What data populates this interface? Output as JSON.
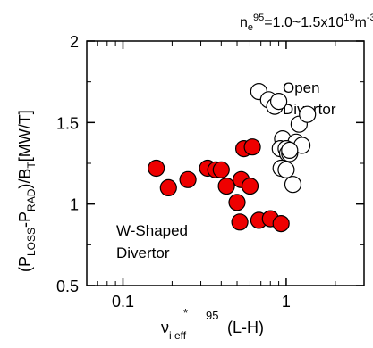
{
  "chart_data": {
    "type": "scatter",
    "title": {
      "pre": "n",
      "sub": "e",
      "sup": "95",
      "mid": "=1.0~1.5x10",
      "exp": "19",
      "unit": "m",
      "unit_exp": "-3"
    },
    "xlabel": {
      "nu": "ν",
      "sub": "i eff",
      "star": "*",
      "sup": "95",
      "tail": "(L-H)"
    },
    "ylabel": {
      "open": "(P",
      "sub1": "LOSS",
      "dash": "-",
      "p2": "P",
      "sub2": "RAD",
      "mid": ")/B",
      "sub3": "T",
      "unit": "[MW/T]"
    },
    "x_scale": "log",
    "xlim": [
      0.06,
      3.0
    ],
    "ylim": [
      0.5,
      2.0
    ],
    "x_ticks": [
      {
        "value": 0.1,
        "label": "0.1"
      },
      {
        "value": 1,
        "label": "1"
      }
    ],
    "y_ticks": [
      {
        "value": 0.5,
        "label": "0.5"
      },
      {
        "value": 1,
        "label": "1"
      },
      {
        "value": 1.5,
        "label": "1.5"
      },
      {
        "value": 2,
        "label": "2"
      }
    ],
    "grid": false,
    "series": [
      {
        "name": [
          "Open",
          "Divertor"
        ],
        "color": "#ffffff",
        "edge": "#000000",
        "marker": "circle-open",
        "x": [
          0.68,
          0.78,
          0.85,
          0.9,
          1.2,
          1.35,
          0.95,
          0.92,
          1.15,
          1.25,
          1.0,
          1.02,
          1.05,
          0.93,
          1.0,
          1.1,
          1.05
        ],
        "y": [
          1.69,
          1.64,
          1.6,
          1.63,
          1.49,
          1.55,
          1.4,
          1.34,
          1.38,
          1.36,
          1.34,
          1.31,
          1.31,
          1.22,
          1.21,
          1.12,
          1.33
        ]
      },
      {
        "name": [
          "W-Shaped",
          "Divertor"
        ],
        "color": "#ee0000",
        "edge": "#000000",
        "marker": "circle-filled",
        "x": [
          0.16,
          0.19,
          0.25,
          0.33,
          0.37,
          0.4,
          0.43,
          0.55,
          0.62,
          0.53,
          0.6,
          0.5,
          0.52,
          0.68,
          0.8,
          0.93
        ],
        "y": [
          1.22,
          1.1,
          1.15,
          1.22,
          1.21,
          1.21,
          1.11,
          1.34,
          1.35,
          1.15,
          1.11,
          1.01,
          0.89,
          0.9,
          0.91,
          0.88
        ]
      }
    ]
  }
}
